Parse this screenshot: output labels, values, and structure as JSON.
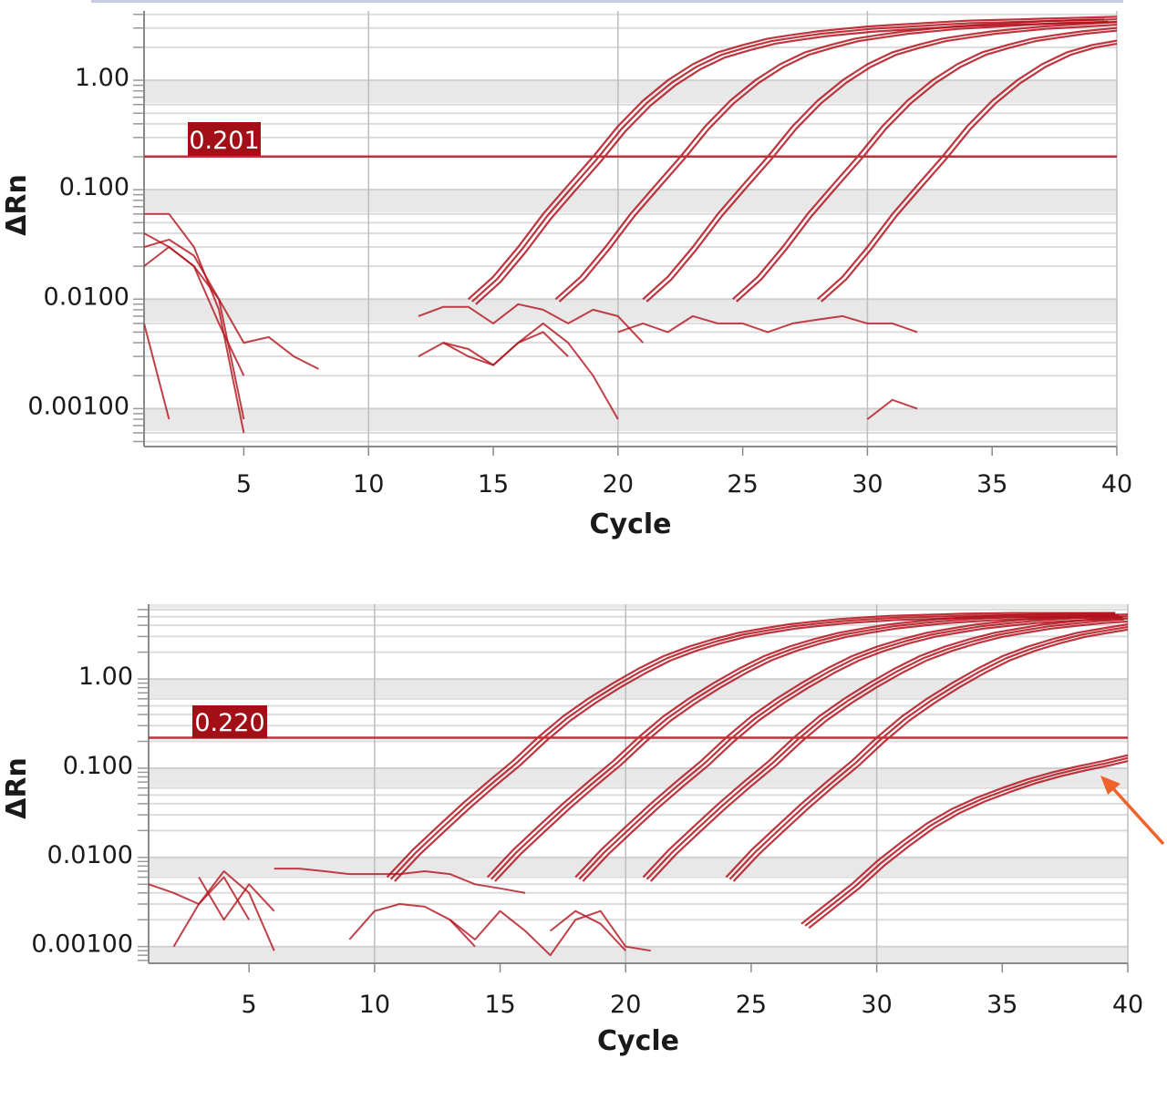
{
  "chart_data": [
    {
      "type": "line",
      "xlabel": "Cycle",
      "ylabel": "ΔRn",
      "y_scale": "log",
      "xlim": [
        1,
        40
      ],
      "ylim": [
        0.00045,
        4.3
      ],
      "x_ticks": [
        "5",
        "10",
        "15",
        "20",
        "25",
        "30",
        "35",
        "40"
      ],
      "y_ticks": [
        "1.00",
        "0.100",
        "0.0100",
        "0.00100"
      ],
      "grid": true,
      "threshold": {
        "value": 0.201,
        "label": "0.201"
      },
      "line_color": "#b3121c",
      "amplification_series": [
        {
          "x_start": 14,
          "replicates": 3,
          "values": [
            0.01,
            0.016,
            0.03,
            0.06,
            0.11,
            0.2,
            0.38,
            0.65,
            1.0,
            1.4,
            1.8,
            2.1,
            2.4,
            2.6,
            2.8,
            2.95,
            3.1,
            3.2,
            3.3,
            3.4,
            3.5,
            3.55,
            3.6,
            3.65,
            3.7,
            3.75,
            3.8
          ]
        },
        {
          "x_start": 17.5,
          "replicates": 2,
          "values": [
            0.01,
            0.016,
            0.03,
            0.06,
            0.11,
            0.2,
            0.38,
            0.65,
            1.0,
            1.4,
            1.8,
            2.1,
            2.4,
            2.6,
            2.8,
            2.95,
            3.1,
            3.2,
            3.3,
            3.4,
            3.5,
            3.55,
            3.6
          ]
        },
        {
          "x_start": 21,
          "replicates": 2,
          "values": [
            0.01,
            0.016,
            0.03,
            0.06,
            0.11,
            0.2,
            0.38,
            0.65,
            1.0,
            1.4,
            1.8,
            2.1,
            2.4,
            2.6,
            2.8,
            2.95,
            3.1,
            3.2,
            3.3,
            3.4
          ]
        },
        {
          "x_start": 24.6,
          "replicates": 2,
          "values": [
            0.01,
            0.016,
            0.03,
            0.06,
            0.11,
            0.2,
            0.38,
            0.65,
            1.0,
            1.4,
            1.8,
            2.1,
            2.4,
            2.6,
            2.8,
            2.95,
            3.1
          ]
        },
        {
          "x_start": 28,
          "replicates": 2,
          "values": [
            0.01,
            0.016,
            0.03,
            0.06,
            0.11,
            0.2,
            0.38,
            0.65,
            1.0,
            1.4,
            1.8,
            2.1,
            2.3
          ]
        }
      ],
      "baseline_series": [
        {
          "x_start": 1,
          "values": [
            0.06,
            0.06,
            0.03,
            0.008,
            0.0006
          ]
        },
        {
          "x_start": 1,
          "values": [
            0.04,
            0.03,
            0.02,
            0.006,
            0.002
          ]
        },
        {
          "x_start": 1,
          "values": [
            0.03,
            0.035,
            0.025,
            0.01,
            0.004,
            0.0045,
            0.003,
            0.0023
          ]
        },
        {
          "x_start": 1,
          "values": [
            0.02,
            0.03,
            0.02,
            0.01,
            0.0008
          ]
        },
        {
          "x_start": 1,
          "values": [
            0.006,
            0.0008
          ]
        },
        {
          "x_start": 12,
          "values": [
            0.007,
            0.0085,
            0.0085,
            0.006,
            0.009,
            0.008,
            0.006,
            0.008,
            0.007,
            0.004
          ]
        },
        {
          "x_start": 12,
          "values": [
            0.003,
            0.004,
            0.0035,
            0.0025,
            0.004,
            0.006,
            0.004,
            0.002,
            0.0008
          ]
        },
        {
          "x_start": 20,
          "values": [
            0.005,
            0.006,
            0.005,
            0.007,
            0.006,
            0.006,
            0.005,
            0.006,
            0.0065,
            0.007,
            0.006,
            0.006,
            0.005
          ]
        },
        {
          "x_start": 13,
          "values": [
            0.004,
            0.003,
            0.0025,
            0.004,
            0.005,
            0.003
          ]
        },
        {
          "x_start": 30,
          "values": [
            0.0008,
            0.0012,
            0.001
          ]
        }
      ]
    },
    {
      "type": "line",
      "xlabel": "Cycle",
      "ylabel": "ΔRn",
      "y_scale": "log",
      "xlim": [
        1,
        40
      ],
      "ylim": [
        0.00065,
        6.9
      ],
      "x_ticks": [
        "5",
        "10",
        "15",
        "20",
        "25",
        "30",
        "35",
        "40"
      ],
      "y_ticks": [
        "1.00",
        "0.100",
        "0.0100",
        "0.00100"
      ],
      "grid": true,
      "threshold": {
        "value": 0.22,
        "label": "0.220"
      },
      "line_color": "#b3121c",
      "annotation": {
        "type": "arrow",
        "color": "#f0622a",
        "points_to": "low-plateau curves near cycle 40"
      },
      "amplification_series": [
        {
          "x_start": 10.5,
          "replicates": 3,
          "values": [
            0.006,
            0.012,
            0.022,
            0.04,
            0.07,
            0.12,
            0.22,
            0.38,
            0.6,
            0.9,
            1.3,
            1.8,
            2.3,
            2.8,
            3.3,
            3.7,
            4.1,
            4.4,
            4.7,
            4.9,
            5.1,
            5.2,
            5.3,
            5.4,
            5.45,
            5.5,
            5.5,
            5.5,
            5.5,
            5.5
          ]
        },
        {
          "x_start": 14.5,
          "replicates": 3,
          "values": [
            0.006,
            0.012,
            0.022,
            0.04,
            0.07,
            0.12,
            0.22,
            0.38,
            0.6,
            0.9,
            1.3,
            1.8,
            2.3,
            2.8,
            3.3,
            3.7,
            4.1,
            4.4,
            4.7,
            4.9,
            5.1,
            5.2,
            5.3,
            5.4,
            5.45,
            5.5
          ]
        },
        {
          "x_start": 18,
          "replicates": 3,
          "values": [
            0.006,
            0.012,
            0.022,
            0.04,
            0.07,
            0.12,
            0.22,
            0.38,
            0.6,
            0.9,
            1.3,
            1.8,
            2.3,
            2.8,
            3.3,
            3.7,
            4.1,
            4.4,
            4.7,
            4.9,
            5.1,
            5.2,
            5.3
          ]
        },
        {
          "x_start": 20.7,
          "replicates": 3,
          "values": [
            0.006,
            0.012,
            0.022,
            0.04,
            0.07,
            0.12,
            0.22,
            0.38,
            0.6,
            0.9,
            1.3,
            1.8,
            2.3,
            2.8,
            3.3,
            3.7,
            4.1,
            4.4,
            4.7,
            4.9
          ]
        },
        {
          "x_start": 24,
          "replicates": 3,
          "values": [
            0.006,
            0.012,
            0.022,
            0.04,
            0.07,
            0.12,
            0.22,
            0.38,
            0.6,
            0.9,
            1.3,
            1.8,
            2.3,
            2.8,
            3.3,
            3.7,
            4.1
          ]
        },
        {
          "x_start": 27,
          "replicates": 3,
          "values": [
            0.0018,
            0.003,
            0.005,
            0.009,
            0.015,
            0.024,
            0.035,
            0.047,
            0.06,
            0.075,
            0.09,
            0.105,
            0.12,
            0.14
          ]
        }
      ],
      "baseline_series": [
        {
          "x_start": 1,
          "values": [
            0.005,
            0.004,
            0.003,
            0.006,
            0.002
          ]
        },
        {
          "x_start": 2,
          "values": [
            0.001,
            0.003,
            0.007,
            0.004,
            0.0009
          ]
        },
        {
          "x_start": 3,
          "values": [
            0.006,
            0.002,
            0.005,
            0.0025
          ]
        },
        {
          "x_start": 6,
          "values": [
            0.0075,
            0.0075,
            0.007,
            0.0065,
            0.0065,
            0.0065,
            0.007,
            0.0065,
            0.005,
            0.0045,
            0.004
          ]
        },
        {
          "x_start": 9,
          "values": [
            0.0012,
            0.0025,
            0.003,
            0.0028,
            0.002,
            0.001
          ]
        },
        {
          "x_start": 13,
          "values": [
            0.002,
            0.0012,
            0.0025,
            0.0015,
            0.0008,
            0.002,
            0.0025,
            0.001,
            0.0009
          ]
        },
        {
          "x_start": 17,
          "values": [
            0.0015,
            0.0025,
            0.0018,
            0.0009
          ]
        }
      ]
    }
  ]
}
